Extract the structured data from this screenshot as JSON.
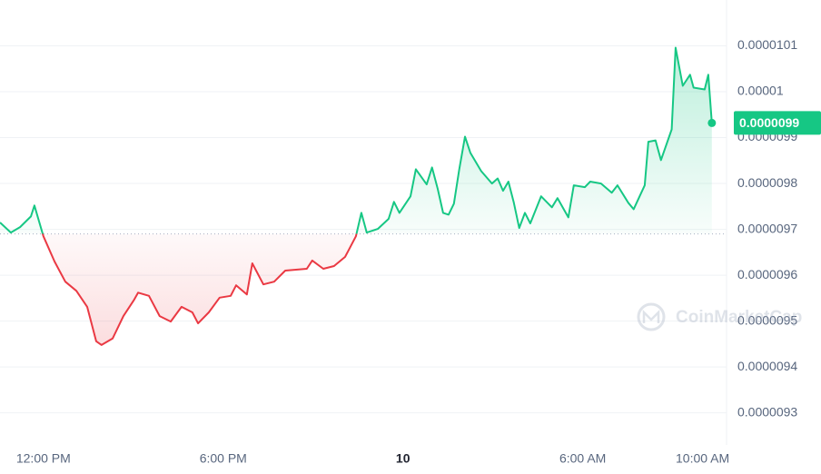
{
  "chart_data": {
    "type": "line",
    "x": [
      10.55,
      10.91,
      11.22,
      11.58,
      11.7,
      12.0,
      12.37,
      12.73,
      13.1,
      13.46,
      13.76,
      13.94,
      14.31,
      14.67,
      15.03,
      15.16,
      15.52,
      15.88,
      16.25,
      16.61,
      16.97,
      17.16,
      17.52,
      17.88,
      18.25,
      18.43,
      18.79,
      18.97,
      19.34,
      19.7,
      20.07,
      20.43,
      20.79,
      20.97,
      21.34,
      21.7,
      22.07,
      22.43,
      22.61,
      22.79,
      23.16,
      23.52,
      23.7,
      23.88,
      24.25,
      24.43,
      24.79,
      24.97,
      25.16,
      25.34,
      25.52,
      25.7,
      25.88,
      26.07,
      26.25,
      26.61,
      26.97,
      27.16,
      27.34,
      27.52,
      27.7,
      27.88,
      28.07,
      28.25,
      28.61,
      28.97,
      29.16,
      29.52,
      29.7,
      30.07,
      30.25,
      30.61,
      30.97,
      31.16,
      31.52,
      31.7,
      32.07,
      32.19,
      32.43,
      32.61,
      32.97,
      33.1,
      33.34,
      33.58,
      33.7,
      34.07,
      34.19,
      34.31
    ],
    "series": [
      {
        "name": "Price",
        "values": [
          9.715e-06,
          9.693e-06,
          9.705e-06,
          9.728e-06,
          9.752e-06,
          9.685e-06,
          9.63e-06,
          9.586e-06,
          9.566e-06,
          9.531e-06,
          9.456e-06,
          9.448e-06,
          9.462e-06,
          9.511e-06,
          9.547e-06,
          9.562e-06,
          9.555e-06,
          9.511e-06,
          9.499e-06,
          9.531e-06,
          9.519e-06,
          9.495e-06,
          9.519e-06,
          9.551e-06,
          9.555e-06,
          9.578e-06,
          9.558e-06,
          9.626e-06,
          9.58e-06,
          9.586e-06,
          9.61e-06,
          9.612e-06,
          9.614e-06,
          9.632e-06,
          9.614e-06,
          9.62e-06,
          9.64e-06,
          9.685e-06,
          9.736e-06,
          9.693e-06,
          9.701e-06,
          9.723e-06,
          9.76e-06,
          9.736e-06,
          9.772e-06,
          9.831e-06,
          9.798e-06,
          9.835e-06,
          9.788e-06,
          9.736e-06,
          9.732e-06,
          9.756e-06,
          9.831e-06,
          9.902e-06,
          9.867e-06,
          9.827e-06,
          9.8e-06,
          9.811e-06,
          9.784e-06,
          9.804e-06,
          9.758e-06,
          9.703e-06,
          9.736e-06,
          9.713e-06,
          9.772e-06,
          9.748e-06,
          9.768e-06,
          9.726e-06,
          9.796e-06,
          9.792e-06,
          9.804e-06,
          9.8e-06,
          9.78e-06,
          9.796e-06,
          9.758e-06,
          9.744e-06,
          9.796e-06,
          9.891e-06,
          9.894e-06,
          9.851e-06,
          9.918e-06,
          1.0096e-05,
          1.0013e-05,
          1.0037e-05,
          1.0009e-05,
          1.0005e-05,
          1.0037e-05,
          9.932e-06
        ]
      }
    ],
    "baseline": 9.69e-06,
    "up_color": "#16c784",
    "down_color": "#ea3943",
    "xlim": [
      10.55,
      34.8
    ],
    "xticks": [
      {
        "value": 12,
        "label": "12:00 PM"
      },
      {
        "value": 18,
        "label": "6:00 PM"
      },
      {
        "value": 24,
        "label": "10"
      },
      {
        "value": 30,
        "label": "6:00 AM"
      },
      {
        "value": 34,
        "label": "10:00 AM"
      }
    ],
    "ylim": [
      9.23e-06,
      1.02e-05
    ],
    "yticks": [
      1.01e-05,
      1e-05,
      9.9e-06,
      9.8e-06,
      9.7e-06,
      9.6e-06,
      9.5e-06,
      9.4e-06,
      9.3e-06
    ],
    "grid": true,
    "current_price_label": "0.0000099",
    "watermark": "CoinMarketCap"
  }
}
